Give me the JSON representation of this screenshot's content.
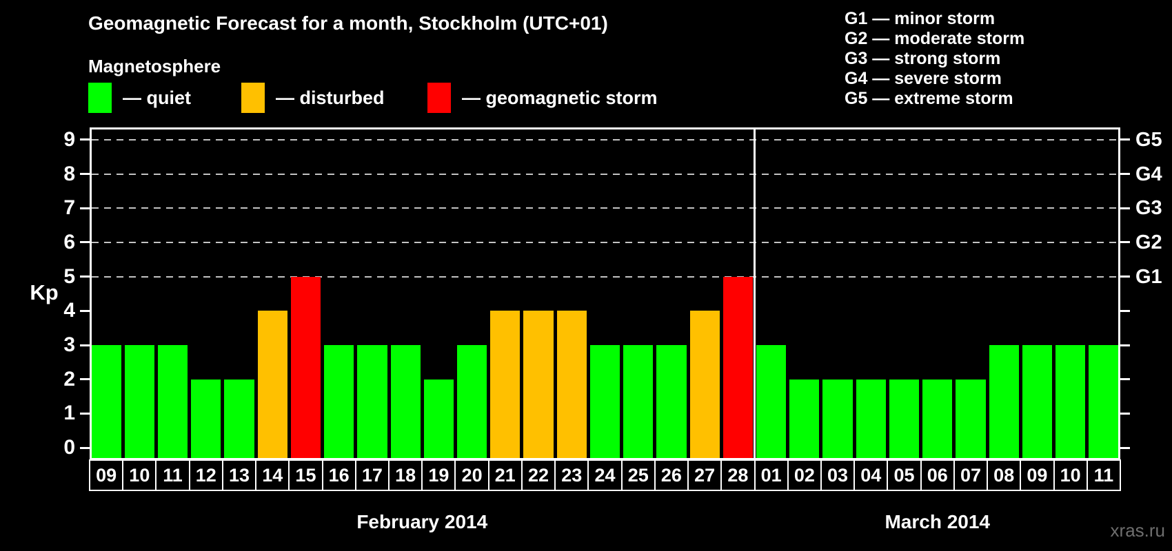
{
  "header": {
    "title": "Geomagnetic Forecast for a month, Stockholm (UTC+01)",
    "subtitle": "Magnetosphere"
  },
  "magnetosphere_legend": [
    {
      "state": "quiet",
      "label": "— quiet",
      "color": "#00ff00"
    },
    {
      "state": "disturbed",
      "label": "— disturbed",
      "color": "#ffc000"
    },
    {
      "state": "storm",
      "label": "— geomagnetic storm",
      "color": "#ff0000"
    }
  ],
  "g_scale_legend": [
    "G1 — minor storm",
    "G2 — moderate storm",
    "G3 — strong storm",
    "G4 — severe storm",
    "G5 — extreme storm"
  ],
  "watermark": "xras.ru",
  "chart_data": {
    "type": "bar",
    "title": "Geomagnetic Forecast for a month, Stockholm (UTC+01)",
    "ylabel": "Kp",
    "ylim": [
      0,
      9
    ],
    "yticks": [
      0,
      1,
      2,
      3,
      4,
      5,
      6,
      7,
      8,
      9
    ],
    "gridlines_at": [
      5,
      6,
      7,
      8,
      9
    ],
    "grid": "dashed-horizontal",
    "legend_position": "top",
    "right_axis": [
      {
        "kp": 5,
        "label": "G1"
      },
      {
        "kp": 6,
        "label": "G2"
      },
      {
        "kp": 7,
        "label": "G3"
      },
      {
        "kp": 8,
        "label": "G4"
      },
      {
        "kp": 9,
        "label": "G5"
      }
    ],
    "colors": {
      "quiet": "#00ff00",
      "disturbed": "#ffc000",
      "storm": "#ff0000"
    },
    "months": [
      {
        "label": "February 2014",
        "days": [
          "09",
          "10",
          "11",
          "12",
          "13",
          "14",
          "15",
          "16",
          "17",
          "18",
          "19",
          "20",
          "21",
          "22",
          "23",
          "24",
          "25",
          "26",
          "27",
          "28"
        ],
        "kp": [
          3,
          3,
          3,
          2,
          2,
          4,
          5,
          3,
          3,
          3,
          2,
          3,
          4,
          4,
          4,
          3,
          3,
          3,
          4,
          5
        ],
        "state": [
          "quiet",
          "quiet",
          "quiet",
          "quiet",
          "quiet",
          "disturbed",
          "storm",
          "quiet",
          "quiet",
          "quiet",
          "quiet",
          "quiet",
          "disturbed",
          "disturbed",
          "disturbed",
          "quiet",
          "quiet",
          "quiet",
          "disturbed",
          "storm"
        ]
      },
      {
        "label": "March 2014",
        "days": [
          "01",
          "02",
          "03",
          "04",
          "05",
          "06",
          "07",
          "08",
          "09",
          "10",
          "11"
        ],
        "kp": [
          3,
          2,
          2,
          2,
          2,
          2,
          2,
          3,
          3,
          3,
          3
        ],
        "state": [
          "quiet",
          "quiet",
          "quiet",
          "quiet",
          "quiet",
          "quiet",
          "quiet",
          "quiet",
          "quiet",
          "quiet",
          "quiet"
        ]
      }
    ]
  }
}
